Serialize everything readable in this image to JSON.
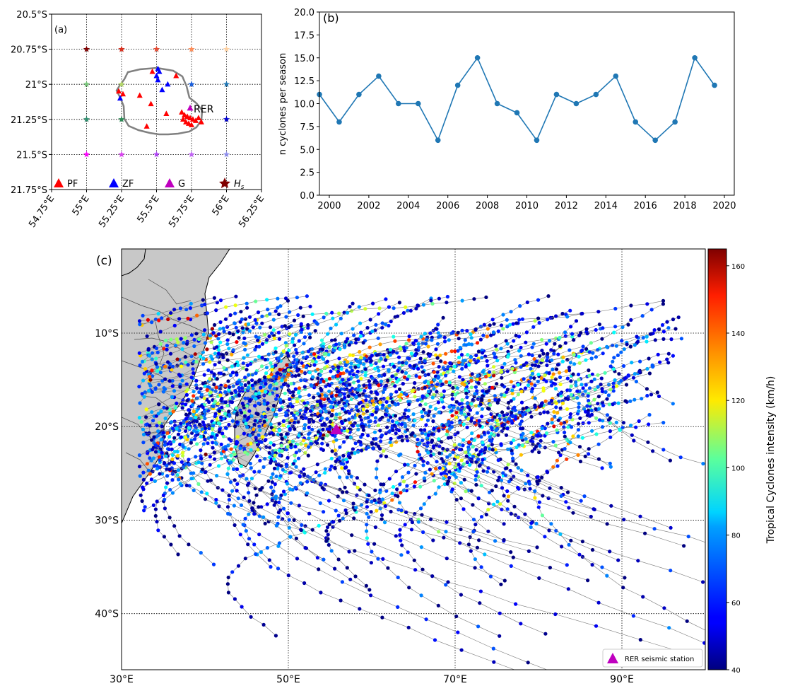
{
  "panel_a": {
    "label": "(a)",
    "xticks": [
      "54.75°E",
      "55°E",
      "55.25°E",
      "55.5°E",
      "55.75°E",
      "56°E",
      "56.25°E"
    ],
    "yticks": [
      "20.5°S",
      "20.75°S",
      "21°S",
      "21.25°S",
      "21.5°S",
      "21.75°S"
    ],
    "station_label": "RER",
    "legend": [
      {
        "label": "PF",
        "color": "#ff0000",
        "marker": "triangle"
      },
      {
        "label": "ZF",
        "color": "#0000ff",
        "marker": "triangle"
      },
      {
        "label": "G",
        "color": "#bf00bf",
        "marker": "triangle"
      },
      {
        "label": "H",
        "sub": "s",
        "color": "#7f0000",
        "marker": "star"
      }
    ]
  },
  "panel_b": {
    "label": "(b)",
    "ylabel": "n cyclones per season",
    "line_color": "#1f77b4"
  },
  "panel_c": {
    "label": "(c)",
    "xticks": [
      "30°E",
      "50°E",
      "70°E",
      "90°E"
    ],
    "yticks": [
      "10°S",
      "20°S",
      "30°S",
      "40°S"
    ],
    "legend_label": "RER seismic station",
    "station_color": "#bf00bf",
    "land_color": "#c8c8c8",
    "colorbar_label": "Tropical Cyclones intensity (km/h)",
    "colorbar_ticks": [
      "40",
      "60",
      "80",
      "100",
      "120",
      "140",
      "160"
    ],
    "colormap": "jet"
  },
  "chart_data": [
    {
      "type": "scatter",
      "panel": "a",
      "xlim": [
        54.75,
        56.25
      ],
      "ylim": [
        -21.75,
        -20.5
      ],
      "xticks": [
        54.75,
        55.0,
        55.25,
        55.5,
        55.75,
        56.0,
        56.25
      ],
      "yticks": [
        -20.5,
        -20.75,
        -21.0,
        -21.25,
        -21.5,
        -21.75
      ],
      "grid": true,
      "series": [
        {
          "name": "PF",
          "points": [
            [
              55.47,
              -20.91
            ],
            [
              55.64,
              -20.94
            ],
            [
              55.23,
              -21.05
            ],
            [
              55.26,
              -21.07
            ],
            [
              55.38,
              -21.08
            ],
            [
              55.46,
              -21.14
            ],
            [
              55.57,
              -21.21
            ],
            [
              55.43,
              -21.3
            ],
            [
              55.68,
              -21.2
            ],
            [
              55.7,
              -21.22
            ],
            [
              55.72,
              -21.23
            ],
            [
              55.74,
              -21.24
            ],
            [
              55.76,
              -21.25
            ],
            [
              55.78,
              -21.26
            ],
            [
              55.71,
              -21.27
            ],
            [
              55.73,
              -21.28
            ],
            [
              55.75,
              -21.29
            ],
            [
              55.8,
              -21.24
            ],
            [
              55.82,
              -21.27
            ],
            [
              55.69,
              -21.25
            ]
          ]
        },
        {
          "name": "ZF",
          "points": [
            [
              55.51,
              -20.89
            ],
            [
              55.52,
              -20.91
            ],
            [
              55.5,
              -20.94
            ],
            [
              55.51,
              -20.97
            ],
            [
              55.54,
              -21.04
            ],
            [
              55.58,
              -21.0
            ],
            [
              55.24,
              -21.1
            ]
          ]
        },
        {
          "name": "G",
          "points": [
            [
              55.74,
              -21.17
            ]
          ]
        },
        {
          "name": "Hs",
          "points": [
            [
              55.0,
              -20.75
            ],
            [
              55.25,
              -20.75
            ],
            [
              55.5,
              -20.75
            ],
            [
              55.75,
              -20.75
            ],
            [
              56.0,
              -20.75
            ],
            [
              55.0,
              -21.0
            ],
            [
              55.25,
              -21.0
            ],
            [
              55.75,
              -21.0
            ],
            [
              56.0,
              -21.0
            ],
            [
              55.0,
              -21.25
            ],
            [
              55.25,
              -21.25
            ],
            [
              56.0,
              -21.25
            ],
            [
              55.0,
              -21.5
            ],
            [
              55.25,
              -21.5
            ],
            [
              55.5,
              -21.5
            ],
            [
              55.75,
              -21.5
            ],
            [
              56.0,
              -21.5
            ]
          ]
        }
      ]
    },
    {
      "type": "line",
      "panel": "b",
      "x": [
        1999.5,
        2000.5,
        2001.5,
        2002.5,
        2003.5,
        2004.5,
        2005.5,
        2006.5,
        2007.5,
        2008.5,
        2009.5,
        2010.5,
        2011.5,
        2012.5,
        2013.5,
        2014.5,
        2015.5,
        2016.5,
        2017.5,
        2018.5,
        2019.5
      ],
      "values": [
        11,
        8,
        11,
        13,
        10,
        10,
        6,
        12,
        15,
        10,
        9,
        6,
        11,
        10,
        11,
        13,
        8,
        6,
        8,
        15,
        12
      ],
      "xlim": [
        1999.5,
        2020.5
      ],
      "ylim": [
        0,
        20
      ],
      "xticks": [
        2000,
        2002,
        2004,
        2006,
        2008,
        2010,
        2012,
        2014,
        2016,
        2018,
        2020
      ],
      "yticks": [
        "0.0",
        "2.5",
        "5.0",
        "7.5",
        "10.0",
        "12.5",
        "15.0",
        "17.5",
        "20.0"
      ],
      "ylabel": "n cyclones per season"
    },
    {
      "type": "scatter",
      "panel": "c",
      "xlim": [
        30,
        100
      ],
      "ylim": [
        -46,
        -1
      ],
      "xticks": [
        30,
        50,
        70,
        90
      ],
      "yticks": [
        -10,
        -20,
        -30,
        -40
      ],
      "color_range": [
        40,
        165
      ],
      "station": [
        55.74,
        -21.17
      ]
    }
  ]
}
